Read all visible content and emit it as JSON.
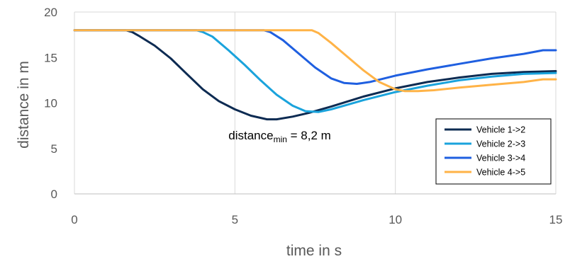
{
  "chart_data": {
    "type": "line",
    "xlabel": "time in s",
    "ylabel": "distance in m",
    "xlim": [
      0,
      15
    ],
    "ylim": [
      0,
      20
    ],
    "xticks": [
      "0",
      "5",
      "10",
      "15"
    ],
    "yticks": [
      "0",
      "5",
      "10",
      "15",
      "20"
    ],
    "grid": "vertical",
    "legend_position": "bottom-right",
    "annotation": {
      "base": "distance",
      "subscript": "min",
      "rest": " = 8,2 m",
      "at": [
        4.8,
        6.0
      ]
    },
    "colors": [
      "#0d2b52",
      "#1aa3dc",
      "#1f5fe0",
      "#ffb347"
    ],
    "series": [
      {
        "name": "Vehicle 1->2",
        "points": [
          [
            0,
            18
          ],
          [
            1.6,
            18
          ],
          [
            1.8,
            17.8
          ],
          [
            2.0,
            17.4
          ],
          [
            2.5,
            16.3
          ],
          [
            3.0,
            14.9
          ],
          [
            3.5,
            13.2
          ],
          [
            4.0,
            11.5
          ],
          [
            4.5,
            10.2
          ],
          [
            5.0,
            9.3
          ],
          [
            5.5,
            8.6
          ],
          [
            6.0,
            8.2
          ],
          [
            6.3,
            8.2
          ],
          [
            6.8,
            8.5
          ],
          [
            7.3,
            8.9
          ],
          [
            8.0,
            9.6
          ],
          [
            9.0,
            10.7
          ],
          [
            10.0,
            11.6
          ],
          [
            11.0,
            12.3
          ],
          [
            12.0,
            12.8
          ],
          [
            13.0,
            13.2
          ],
          [
            14.0,
            13.4
          ],
          [
            15.0,
            13.5
          ]
        ]
      },
      {
        "name": "Vehicle 2->3",
        "points": [
          [
            0,
            18
          ],
          [
            3.8,
            18
          ],
          [
            4.0,
            17.8
          ],
          [
            4.3,
            17.3
          ],
          [
            4.8,
            15.8
          ],
          [
            5.3,
            14.2
          ],
          [
            5.8,
            12.5
          ],
          [
            6.3,
            10.9
          ],
          [
            6.8,
            9.7
          ],
          [
            7.2,
            9.1
          ],
          [
            7.6,
            9.0
          ],
          [
            8.0,
            9.3
          ],
          [
            8.5,
            9.8
          ],
          [
            9.0,
            10.3
          ],
          [
            10.0,
            11.2
          ],
          [
            11.0,
            11.9
          ],
          [
            12.0,
            12.5
          ],
          [
            13.0,
            12.9
          ],
          [
            14.0,
            13.2
          ],
          [
            15.0,
            13.3
          ]
        ]
      },
      {
        "name": "Vehicle 3->4",
        "points": [
          [
            0,
            18
          ],
          [
            5.9,
            18
          ],
          [
            6.1,
            17.8
          ],
          [
            6.5,
            16.9
          ],
          [
            7.0,
            15.4
          ],
          [
            7.5,
            13.9
          ],
          [
            8.0,
            12.7
          ],
          [
            8.4,
            12.2
          ],
          [
            8.8,
            12.1
          ],
          [
            9.2,
            12.3
          ],
          [
            10.0,
            13.0
          ],
          [
            11.0,
            13.7
          ],
          [
            12.0,
            14.3
          ],
          [
            13.0,
            14.9
          ],
          [
            14.0,
            15.4
          ],
          [
            14.6,
            15.8
          ],
          [
            15.0,
            15.8
          ]
        ]
      },
      {
        "name": "Vehicle 4->5",
        "points": [
          [
            0,
            18
          ],
          [
            7.4,
            18
          ],
          [
            7.6,
            17.7
          ],
          [
            8.0,
            16.6
          ],
          [
            8.5,
            15.1
          ],
          [
            9.0,
            13.6
          ],
          [
            9.5,
            12.3
          ],
          [
            10.0,
            11.5
          ],
          [
            10.3,
            11.3
          ],
          [
            10.7,
            11.3
          ],
          [
            11.2,
            11.4
          ],
          [
            12.0,
            11.7
          ],
          [
            13.0,
            12.0
          ],
          [
            14.0,
            12.3
          ],
          [
            14.6,
            12.6
          ],
          [
            15.0,
            12.6
          ]
        ]
      }
    ]
  }
}
